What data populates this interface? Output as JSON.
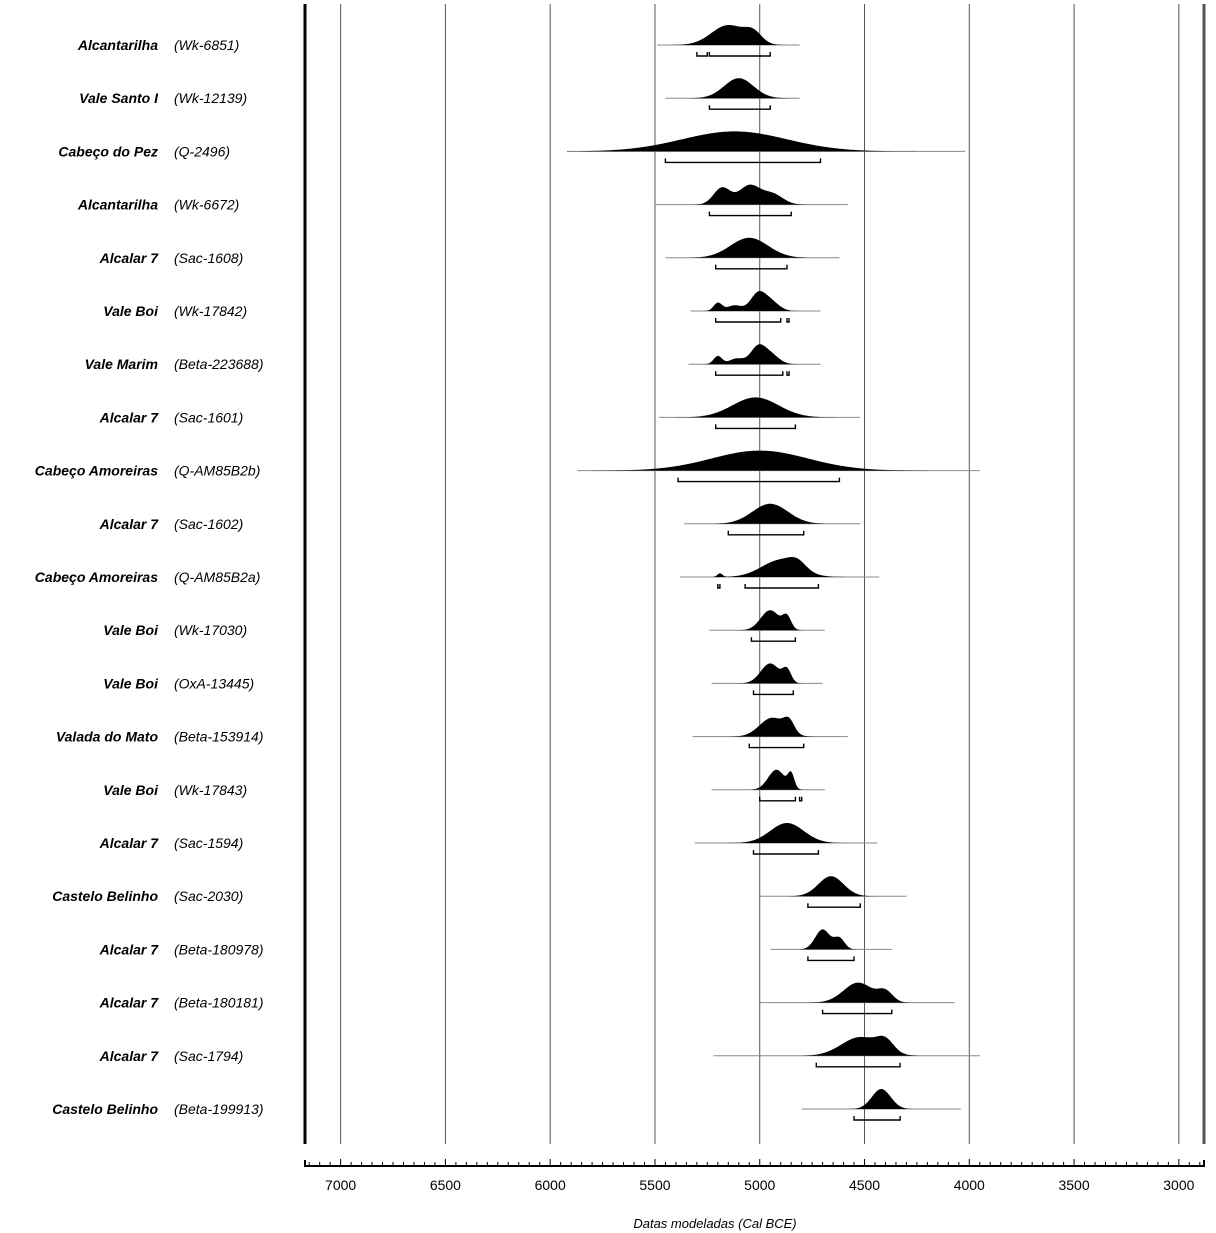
{
  "chart_data": {
    "type": "ridgeline",
    "xlabel": "Datas modeladas (Cal BCE)",
    "x_reversed": true,
    "xlim": [
      7170,
      2880
    ],
    "xticks": [
      7000,
      6500,
      6000,
      5500,
      5000,
      4500,
      4000,
      3500,
      3000
    ],
    "gridlines": [
      7000,
      6500,
      6000,
      5500,
      5000,
      4500,
      4000,
      3500,
      3000
    ],
    "minor_tick_step": 50,
    "colors": {
      "fill": "#000000",
      "grid": "#555555",
      "axis": "#000000",
      "text": "#000000"
    },
    "rows": [
      {
        "site": "Alcantarilha",
        "lab": "(Wk-6851)",
        "range": [
          5490,
          4810
        ],
        "peaks": [
          {
            "c": 5150,
            "s": 80,
            "h": 1.0
          },
          {
            "c": 5030,
            "s": 40,
            "h": 0.5
          }
        ],
        "hpd": [
          [
            5300,
            5250
          ],
          [
            5240,
            4950
          ]
        ]
      },
      {
        "site": "Vale Santo I",
        "lab": "(Wk-12139)",
        "range": [
          5450,
          4810
        ],
        "peaks": [
          {
            "c": 5100,
            "s": 70,
            "h": 1.0
          }
        ],
        "hpd": [
          [
            5240,
            4950
          ]
        ]
      },
      {
        "site": "Cabeço do Pez",
        "lab": "(Q-2496)",
        "range": [
          5920,
          4020
        ],
        "peaks": [
          {
            "c": 5120,
            "s": 250,
            "h": 0.95
          }
        ],
        "hpd": [
          [
            5450,
            4710
          ]
        ]
      },
      {
        "site": "Alcantarilha",
        "lab": "(Wk-6672)",
        "range": [
          5500,
          4580
        ],
        "peaks": [
          {
            "c": 5180,
            "s": 40,
            "h": 0.8
          },
          {
            "c": 5050,
            "s": 50,
            "h": 0.9
          },
          {
            "c": 4940,
            "s": 50,
            "h": 0.5
          }
        ],
        "hpd": [
          [
            5240,
            4850
          ]
        ]
      },
      {
        "site": "Alcalar 7",
        "lab": "(Sac-1608)",
        "range": [
          5450,
          4620
        ],
        "peaks": [
          {
            "c": 5050,
            "s": 90,
            "h": 1.0
          }
        ],
        "hpd": [
          [
            5210,
            4870
          ]
        ]
      },
      {
        "site": "Vale Boi",
        "lab": "(Wk-17842)",
        "range": [
          5330,
          4710
        ],
        "peaks": [
          {
            "c": 5200,
            "s": 20,
            "h": 0.5
          },
          {
            "c": 5120,
            "s": 35,
            "h": 0.35
          },
          {
            "c": 5010,
            "s": 35,
            "h": 1.0
          },
          {
            "c": 4950,
            "s": 40,
            "h": 0.6
          }
        ],
        "hpd": [
          [
            5210,
            4900
          ],
          [
            4870,
            4860
          ]
        ]
      },
      {
        "site": "Vale Marim",
        "lab": "(Beta-223688)",
        "range": [
          5340,
          4710
        ],
        "peaks": [
          {
            "c": 5200,
            "s": 20,
            "h": 0.5
          },
          {
            "c": 5110,
            "s": 35,
            "h": 0.35
          },
          {
            "c": 5010,
            "s": 35,
            "h": 1.0
          },
          {
            "c": 4950,
            "s": 40,
            "h": 0.6
          }
        ],
        "hpd": [
          [
            5210,
            4890
          ],
          [
            4870,
            4860
          ]
        ]
      },
      {
        "site": "Alcalar 7",
        "lab": "(Sac-1601)",
        "range": [
          5480,
          4520
        ],
        "peaks": [
          {
            "c": 5020,
            "s": 110,
            "h": 0.85
          }
        ],
        "hpd": [
          [
            5210,
            4830
          ]
        ]
      },
      {
        "site": "Cabeço Amoreiras",
        "lab": "(Q-AM85B2b)",
        "range": [
          5870,
          3950
        ],
        "peaks": [
          {
            "c": 5000,
            "s": 230,
            "h": 0.95
          }
        ],
        "hpd": [
          [
            5390,
            4620
          ]
        ]
      },
      {
        "site": "Alcalar 7",
        "lab": "(Sac-1602)",
        "range": [
          5360,
          4520
        ],
        "peaks": [
          {
            "c": 4950,
            "s": 85,
            "h": 0.9
          }
        ],
        "hpd": [
          [
            5150,
            4790
          ]
        ]
      },
      {
        "site": "Cabeço Amoreiras",
        "lab": "(Q-AM85B2a)",
        "range": [
          5380,
          4430
        ],
        "peaks": [
          {
            "c": 5190,
            "s": 12,
            "h": 0.2
          },
          {
            "c": 4900,
            "s": 90,
            "h": 0.95
          },
          {
            "c": 4820,
            "s": 40,
            "h": 0.4
          }
        ],
        "hpd": [
          [
            5200,
            5190
          ],
          [
            5070,
            4720
          ]
        ]
      },
      {
        "site": "Vale Boi",
        "lab": "(Wk-17030)",
        "range": [
          5240,
          4690
        ],
        "peaks": [
          {
            "c": 4950,
            "s": 45,
            "h": 1.0
          },
          {
            "c": 4870,
            "s": 20,
            "h": 0.6
          }
        ],
        "hpd": [
          [
            5040,
            4830
          ]
        ]
      },
      {
        "site": "Vale Boi",
        "lab": "(OxA-13445)",
        "range": [
          5230,
          4700
        ],
        "peaks": [
          {
            "c": 4950,
            "s": 45,
            "h": 1.0
          },
          {
            "c": 4870,
            "s": 20,
            "h": 0.6
          }
        ],
        "hpd": [
          [
            5030,
            4840
          ]
        ]
      },
      {
        "site": "Valada do Mato",
        "lab": "(Beta-153914)",
        "range": [
          5320,
          4580
        ],
        "peaks": [
          {
            "c": 4940,
            "s": 60,
            "h": 1.0
          },
          {
            "c": 4860,
            "s": 25,
            "h": 0.6
          }
        ],
        "hpd": [
          [
            5050,
            4790
          ]
        ]
      },
      {
        "site": "Vale Boi",
        "lab": "(Wk-17843)",
        "range": [
          5230,
          4690
        ],
        "peaks": [
          {
            "c": 4920,
            "s": 40,
            "h": 1.0
          },
          {
            "c": 4850,
            "s": 15,
            "h": 0.7
          }
        ],
        "hpd": [
          [
            5000,
            4830
          ],
          [
            4810,
            4800
          ]
        ]
      },
      {
        "site": "Alcalar 7",
        "lab": "(Sac-1594)",
        "range": [
          5310,
          4440
        ],
        "peaks": [
          {
            "c": 4870,
            "s": 80,
            "h": 1.0
          }
        ],
        "hpd": [
          [
            5030,
            4720
          ]
        ]
      },
      {
        "site": "Castelo Belinho",
        "lab": "(Sac-2030)",
        "range": [
          5000,
          4300
        ],
        "peaks": [
          {
            "c": 4660,
            "s": 60,
            "h": 1.0
          }
        ],
        "hpd": [
          [
            4770,
            4520
          ]
        ]
      },
      {
        "site": "Alcalar 7",
        "lab": "(Beta-180978)",
        "range": [
          4950,
          4370
        ],
        "peaks": [
          {
            "c": 4700,
            "s": 35,
            "h": 1.0
          },
          {
            "c": 4620,
            "s": 25,
            "h": 0.55
          }
        ],
        "hpd": [
          [
            4770,
            4550
          ]
        ]
      },
      {
        "site": "Alcalar 7",
        "lab": "(Beta-180181)",
        "range": [
          5000,
          4070
        ],
        "peaks": [
          {
            "c": 4530,
            "s": 70,
            "h": 1.0
          },
          {
            "c": 4400,
            "s": 35,
            "h": 0.5
          }
        ],
        "hpd": [
          [
            4700,
            4370
          ]
        ]
      },
      {
        "site": "Alcalar 7",
        "lab": "(Sac-1794)",
        "range": [
          5220,
          3950
        ],
        "peaks": [
          {
            "c": 4520,
            "s": 90,
            "h": 1.0
          },
          {
            "c": 4400,
            "s": 40,
            "h": 0.6
          }
        ],
        "hpd": [
          [
            4730,
            4330
          ]
        ]
      },
      {
        "site": "Castelo Belinho",
        "lab": "(Beta-199913)",
        "range": [
          4800,
          4040
        ],
        "peaks": [
          {
            "c": 4420,
            "s": 45,
            "h": 1.0
          }
        ],
        "hpd": [
          [
            4550,
            4330
          ]
        ]
      }
    ]
  }
}
